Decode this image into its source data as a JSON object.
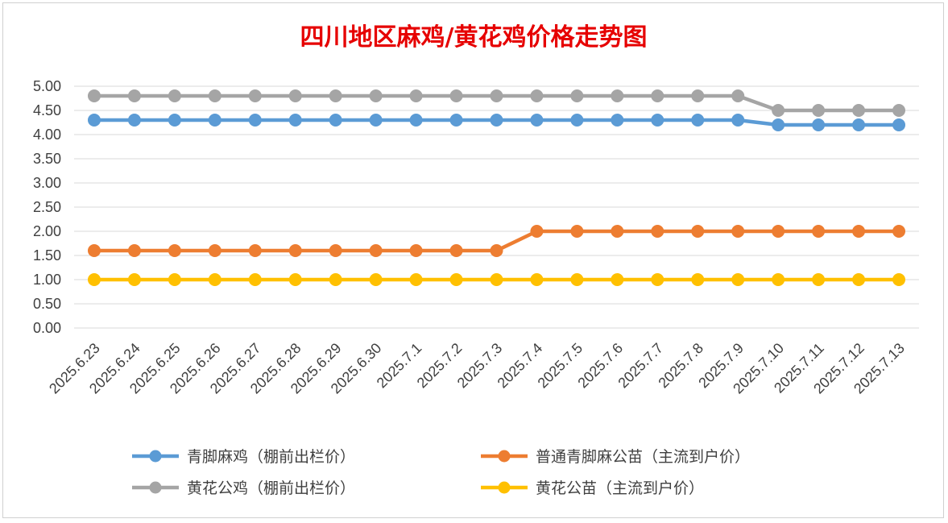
{
  "chart_data": {
    "type": "line",
    "title": "四川地区麻鸡/黄花鸡价格走势图",
    "xlabel": "",
    "ylabel": "",
    "ylim": [
      0,
      5
    ],
    "y_ticks": [
      "0.00",
      "0.50",
      "1.00",
      "1.50",
      "2.00",
      "2.50",
      "3.00",
      "3.50",
      "4.00",
      "4.50",
      "5.00"
    ],
    "grid": true,
    "legend_position": "bottom",
    "categories": [
      "2025.6.23",
      "2025.6.24",
      "2025.6.25",
      "2025.6.26",
      "2025.6.27",
      "2025.6.28",
      "2025.6.29",
      "2025.6.30",
      "2025.7.1",
      "2025.7.2",
      "2025.7.3",
      "2025.7.4",
      "2025.7.5",
      "2025.7.6",
      "2025.7.7",
      "2025.7.8",
      "2025.7.9",
      "2025.7.10",
      "2025.7.11",
      "2025.7.12",
      "2025.7.13"
    ],
    "series": [
      {
        "name": "青脚麻鸡（棚前出栏价）",
        "color": "#5b9bd5",
        "values": [
          4.3,
          4.3,
          4.3,
          4.3,
          4.3,
          4.3,
          4.3,
          4.3,
          4.3,
          4.3,
          4.3,
          4.3,
          4.3,
          4.3,
          4.3,
          4.3,
          4.3,
          4.2,
          4.2,
          4.2,
          4.2
        ]
      },
      {
        "name": "普通青脚麻公苗（主流到户价）",
        "color": "#ed7d31",
        "values": [
          1.6,
          1.6,
          1.6,
          1.6,
          1.6,
          1.6,
          1.6,
          1.6,
          1.6,
          1.6,
          1.6,
          2.0,
          2.0,
          2.0,
          2.0,
          2.0,
          2.0,
          2.0,
          2.0,
          2.0,
          2.0
        ]
      },
      {
        "name": "黄花公鸡（棚前出栏价）",
        "color": "#a5a5a5",
        "values": [
          4.8,
          4.8,
          4.8,
          4.8,
          4.8,
          4.8,
          4.8,
          4.8,
          4.8,
          4.8,
          4.8,
          4.8,
          4.8,
          4.8,
          4.8,
          4.8,
          4.8,
          4.5,
          4.5,
          4.5,
          4.5
        ]
      },
      {
        "name": "黄花公苗（主流到户价）",
        "color": "#ffc000",
        "values": [
          1.0,
          1.0,
          1.0,
          1.0,
          1.0,
          1.0,
          1.0,
          1.0,
          1.0,
          1.0,
          1.0,
          1.0,
          1.0,
          1.0,
          1.0,
          1.0,
          1.0,
          1.0,
          1.0,
          1.0,
          1.0
        ]
      }
    ],
    "legend_order": [
      0,
      1,
      2,
      3
    ]
  }
}
